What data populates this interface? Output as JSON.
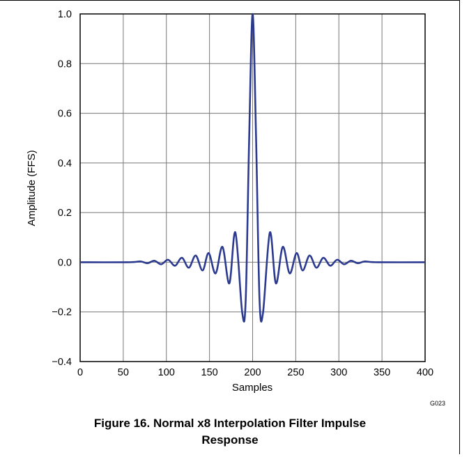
{
  "chart_data": {
    "type": "line",
    "xlabel": "Samples",
    "ylabel": "Amplitude (FFS)",
    "xlim": [
      0,
      400
    ],
    "ylim": [
      -0.4,
      1.0
    ],
    "grid": true,
    "x_ticks": [
      "0",
      "50",
      "100",
      "150",
      "200",
      "250",
      "300",
      "350",
      "400"
    ],
    "y_ticks": [
      "1.0",
      "0.8",
      "0.6",
      "0.4",
      "0.2",
      "0.0",
      "−0.2",
      "−0.4"
    ],
    "line_color": "#2b3a8f",
    "series": [
      {
        "x": [
          0,
          55,
          70,
          78,
          86,
          94,
          102,
          110,
          118,
          126,
          134,
          142,
          149,
          157,
          165,
          173,
          180,
          188,
          192,
          196,
          200,
          204,
          208,
          212,
          220,
          227,
          235,
          243,
          251,
          258,
          266,
          274,
          282,
          290,
          298,
          306,
          314,
          322,
          330,
          345,
          400
        ],
        "y": [
          0,
          0,
          0.003,
          -0.004,
          0.006,
          -0.008,
          0.01,
          -0.014,
          0.018,
          -0.022,
          0.027,
          -0.033,
          0.037,
          -0.045,
          0.062,
          -0.085,
          0.12,
          -0.205,
          -0.15,
          0.5,
          1.0,
          0.5,
          -0.15,
          -0.205,
          0.12,
          -0.085,
          0.062,
          -0.045,
          0.037,
          -0.033,
          0.027,
          -0.022,
          0.018,
          -0.014,
          0.01,
          -0.008,
          0.006,
          -0.004,
          0.003,
          0,
          0
        ]
      }
    ]
  },
  "figure_code": "G023",
  "caption": "Figure 16. Normal x8 Interpolation Filter Impulse Response"
}
